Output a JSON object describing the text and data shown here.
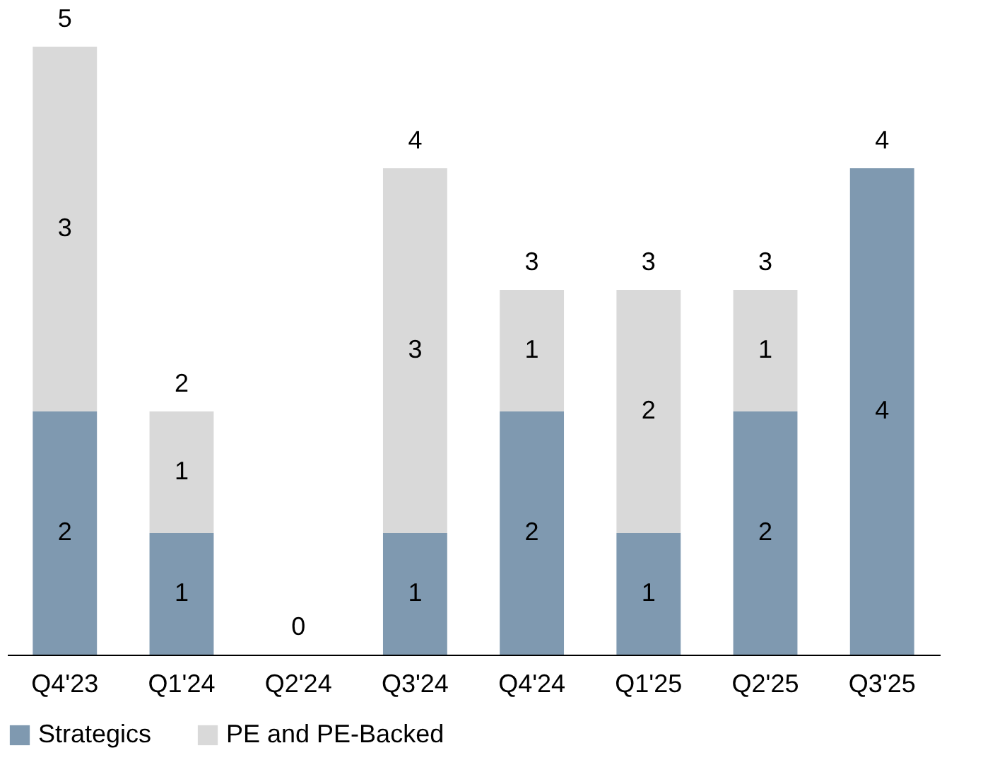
{
  "chart_data": {
    "type": "bar",
    "stacked": true,
    "categories": [
      "Q4'23",
      "Q1'24",
      "Q2'24",
      "Q3'24",
      "Q4'24",
      "Q1'25",
      "Q2'25",
      "Q3'25"
    ],
    "series": [
      {
        "name": "Strategics",
        "color": "#7f99b0",
        "values": [
          2,
          1,
          0,
          1,
          2,
          1,
          2,
          4
        ],
        "value_labels": [
          "2",
          "1",
          null,
          "1",
          "2",
          "1",
          "2",
          "4"
        ]
      },
      {
        "name": "PE and PE-Backed",
        "color": "#d9d9d9",
        "values": [
          3,
          1,
          0,
          3,
          1,
          2,
          1,
          0
        ],
        "value_labels": [
          "3",
          "1",
          null,
          "3",
          "1",
          "2",
          "1",
          null
        ]
      }
    ],
    "totals": [
      "5",
      "2",
      "0",
      "4",
      "3",
      "3",
      "3",
      "4"
    ],
    "legend": "bottom",
    "grid": false
  }
}
